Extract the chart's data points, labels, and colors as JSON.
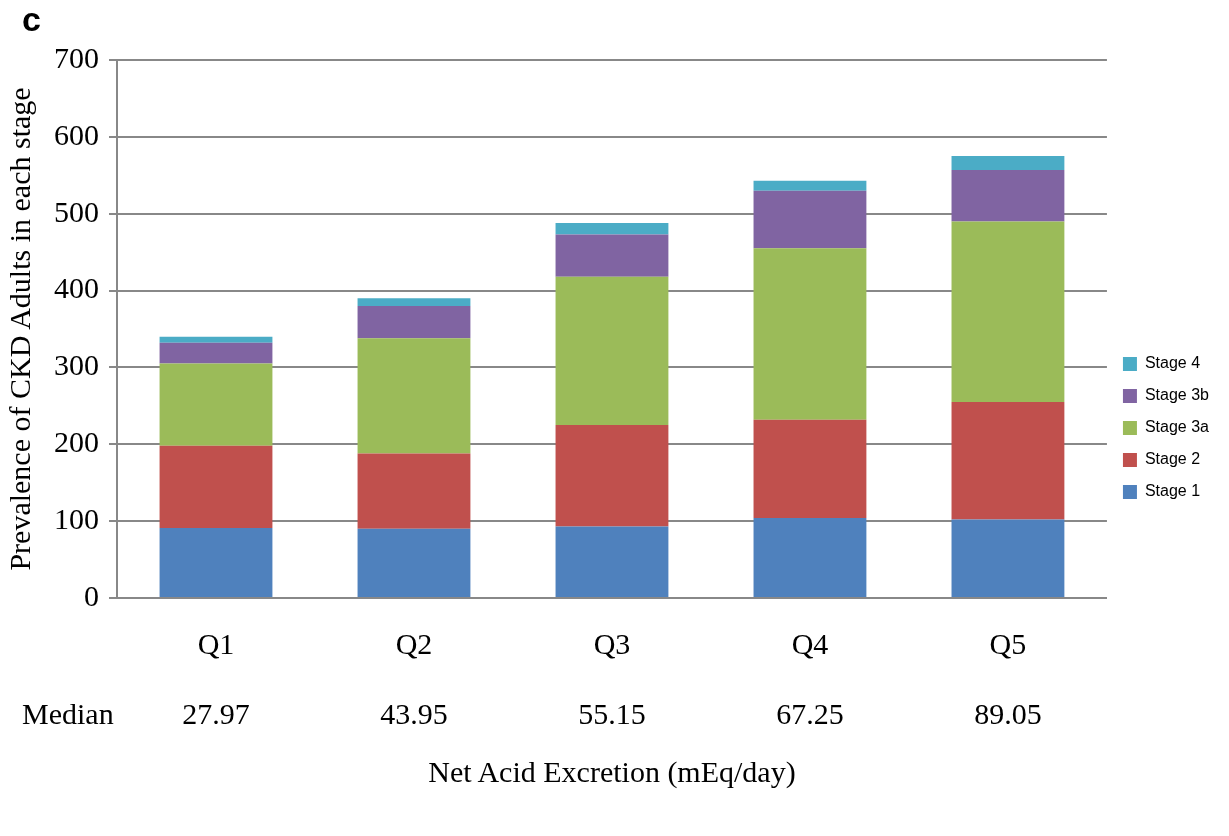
{
  "chart_data": {
    "type": "bar",
    "title": "c",
    "xlabel": "Net Acid Excretion (mEq/day)",
    "ylabel": "Prevalence of CKD Adults in each stage",
    "categories": [
      "Q1",
      "Q2",
      "Q3",
      "Q4",
      "Q5"
    ],
    "stacked": true,
    "series": [
      {
        "name": "Stage 1",
        "color": "#4f81bd",
        "values": [
          91,
          90,
          93,
          104,
          102
        ]
      },
      {
        "name": "Stage 2",
        "color": "#c0504d",
        "values": [
          107,
          98,
          132,
          128,
          153
        ]
      },
      {
        "name": "Stage 3a",
        "color": "#9bbb59",
        "values": [
          107,
          150,
          193,
          223,
          235
        ]
      },
      {
        "name": "Stage 3b",
        "color": "#8064a2",
        "values": [
          27,
          42,
          55,
          75,
          67
        ]
      },
      {
        "name": "Stage 4",
        "color": "#4bacc6",
        "values": [
          8,
          10,
          15,
          13,
          18
        ]
      }
    ],
    "ylim": [
      0,
      700
    ],
    "yticks": [
      0,
      100,
      200,
      300,
      400,
      500,
      600,
      700
    ],
    "grid": "y",
    "legend": "right",
    "annotations": [
      "Median",
      "27.97",
      "43.95",
      "55.15",
      "67.25",
      "89.05"
    ]
  }
}
